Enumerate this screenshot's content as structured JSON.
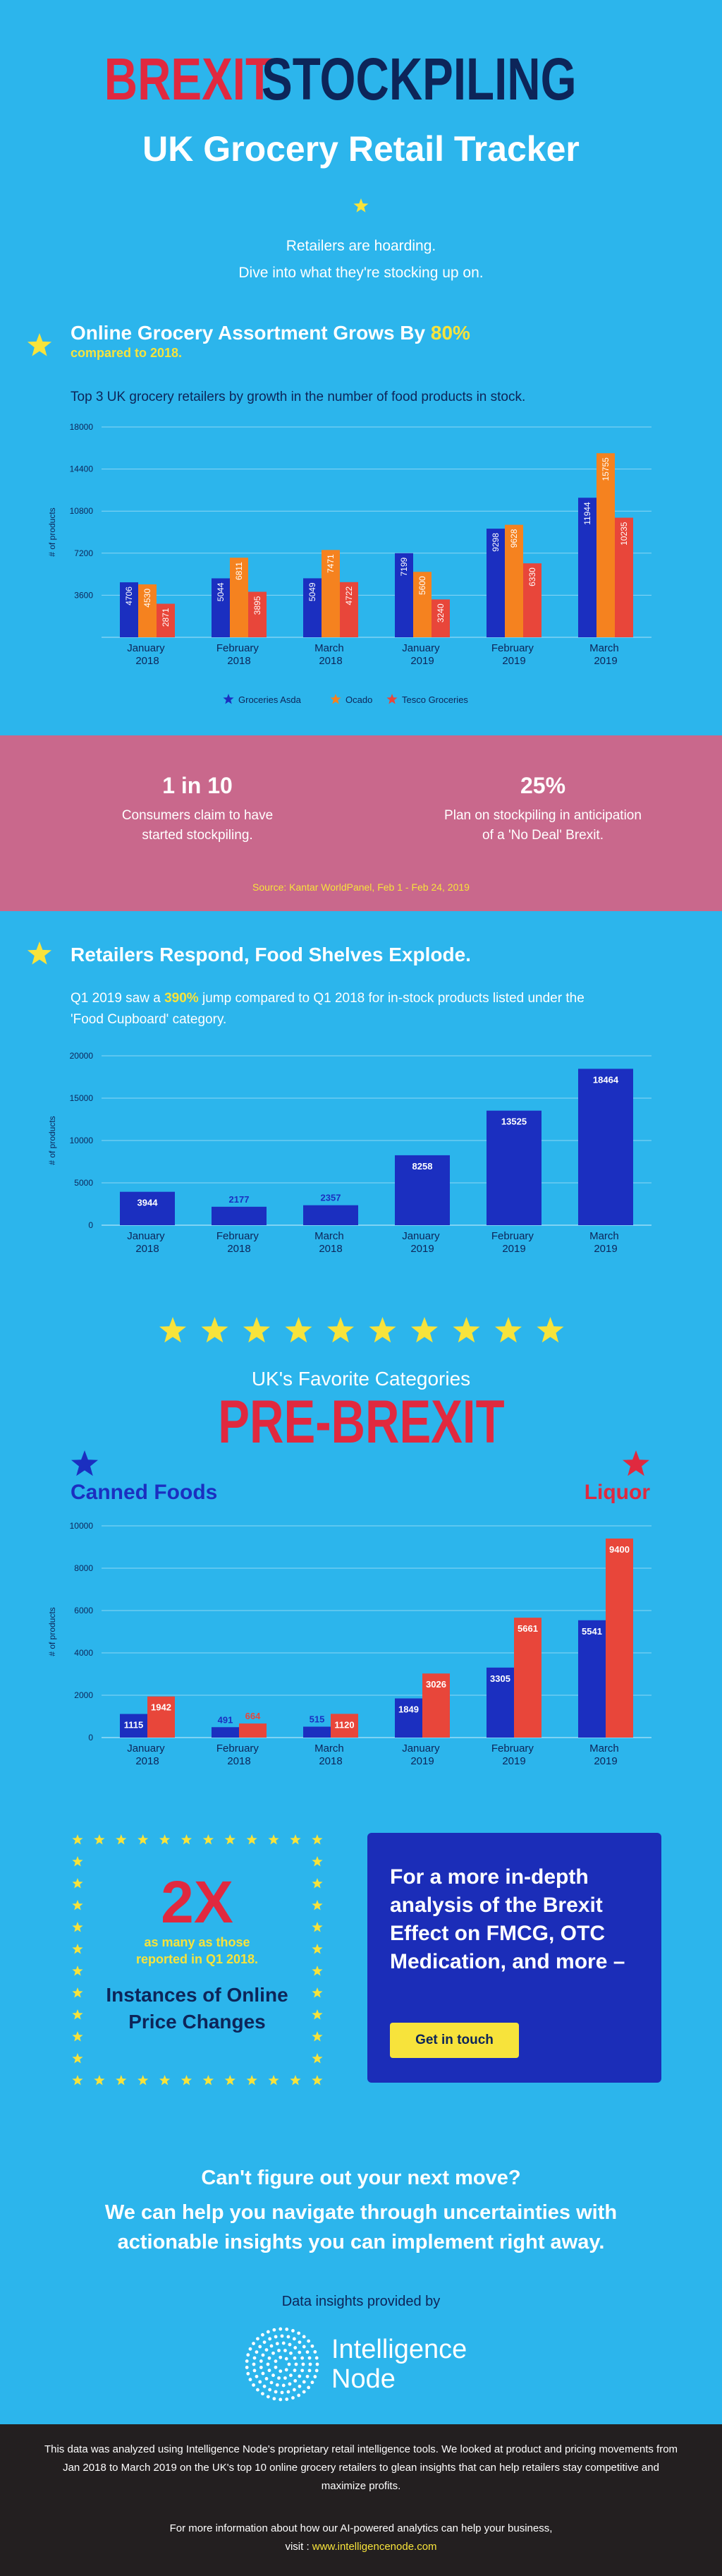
{
  "header": {
    "title_part1": "BREXIT",
    "title_part2": "STOCKPILING",
    "subtitle": "UK Grocery Retail Tracker",
    "tagline": [
      "Retailers are hoarding.",
      "Dive into what they're stocking up on."
    ]
  },
  "chart_data": [
    {
      "type": "bar",
      "title": "Online Grocery Assortment Grows By",
      "title_highlight": "80%",
      "subtitle": "compared to 2018.",
      "description": "Top 3 UK grocery retailers by growth in the number of food products in stock.",
      "ylabel": "# of products",
      "categories": [
        "January 2018",
        "February 2018",
        "March 2018",
        "January 2019",
        "February 2019",
        "March 2019"
      ],
      "series": [
        {
          "name": "Groceries Asda",
          "color": "#1b2fc0",
          "values": [
            4706,
            5044,
            5049,
            7199,
            9298,
            11944
          ]
        },
        {
          "name": "Ocado",
          "color": "#f5821f",
          "values": [
            4530,
            6811,
            7471,
            5600,
            9628,
            15755
          ]
        },
        {
          "name": "Tesco Groceries",
          "color": "#e8463a",
          "values": [
            2871,
            3895,
            4722,
            3240,
            6330,
            10235
          ]
        }
      ],
      "ylim": [
        0,
        18000
      ],
      "yticks": [
        3600,
        7200,
        10800,
        14400,
        18000
      ],
      "grid": true,
      "label_style": "rotated"
    },
    {
      "type": "bar",
      "title": "Retailers Respond, Food Shelves Explode.",
      "description_parts": [
        "Q1 2019 saw a",
        "390%",
        "jump compared to Q1 2018 for in-stock products listed under the 'Food Cupboard' category."
      ],
      "ylabel": "# of products",
      "categories": [
        "January 2018",
        "February 2018",
        "March 2018",
        "January 2019",
        "February 2019",
        "March 2019"
      ],
      "values": [
        3944,
        2177,
        2357,
        8258,
        13525,
        18464
      ],
      "color": "#1b2fc0",
      "ylim": [
        0,
        20000
      ],
      "yticks": [
        0,
        5000,
        10000,
        15000,
        20000
      ],
      "grid": true,
      "label_style": "inside"
    },
    {
      "type": "bar",
      "subtitle": "UK's Favorite Categories",
      "title": "PRE-BREXIT",
      "ylabel": "# of products",
      "categories": [
        "January 2018",
        "February 2018",
        "March 2018",
        "January 2019",
        "February 2019",
        "March 2019"
      ],
      "series": [
        {
          "name": "Canned Foods",
          "color": "#1b2fc0",
          "values": [
            1115,
            491,
            515,
            1849,
            3305,
            5541
          ]
        },
        {
          "name": "Liquor",
          "color": "#e8463a",
          "values": [
            1942,
            664,
            1120,
            3026,
            5661,
            9400
          ]
        }
      ],
      "ylim": [
        0,
        10000
      ],
      "yticks": [
        0,
        2000,
        4000,
        6000,
        8000,
        10000
      ],
      "grid": true,
      "label_style": "inside"
    }
  ],
  "stats": {
    "items": [
      {
        "figure": "1 in 10",
        "text": "Consumers claim to have started stockpiling."
      },
      {
        "figure": "25%",
        "text": "Plan on stockpiling in anticipation of a 'No Deal' Brexit."
      }
    ],
    "source": "Source: Kantar WorldPanel, Feb 1 - Feb 24, 2019"
  },
  "price_changes": {
    "figure": "2X",
    "note": "as many as those reported in Q1 2018.",
    "label": "Instances of Online Price Changes"
  },
  "cta": {
    "text": "For a more in-depth analysis of the Brexit Effect on FMCG, OTC Medication, and more –",
    "button": "Get in touch"
  },
  "closing": {
    "question": "Can't figure out your next move?",
    "message": "We can help you navigate through uncertainties with actionable insights you can implement right away.",
    "provided_by": "Data insights provided by",
    "logo": "Intelligence Node"
  },
  "footer": {
    "text": "This data was analyzed using Intelligence Node's proprietary retail intelligence tools. We looked at product and pricing movements from Jan 2018 to March 2019 on the UK's top 10 online grocery retailers to glean insights that can help retailers stay competitive and maximize profits.",
    "more": "For more information about how our AI-powered analytics can help your business,",
    "visit_label": "visit :",
    "url": "www.intelligencenode.com"
  }
}
